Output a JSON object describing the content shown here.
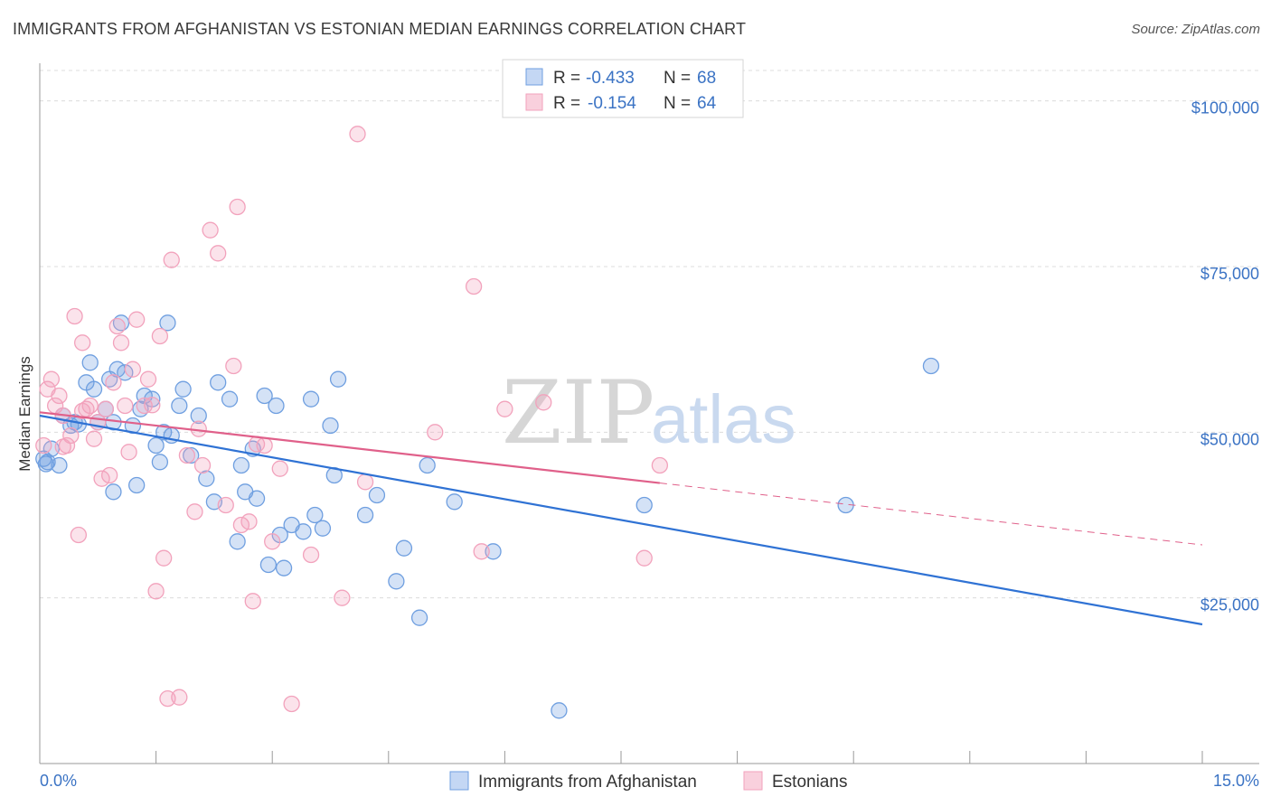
{
  "title": "IMMIGRANTS FROM AFGHANISTAN VS ESTONIAN MEDIAN EARNINGS CORRELATION CHART",
  "source": "Source: ZipAtlas.com",
  "watermark": {
    "zip": "ZIP",
    "atlas": "atlas"
  },
  "legend": {
    "rows": [
      {
        "r_label": "R =",
        "r_value": "-0.433",
        "n_label": "N =",
        "n_value": "68"
      },
      {
        "r_label": "R =",
        "r_value": "-0.154",
        "n_label": "N =",
        "n_value": "64"
      }
    ]
  },
  "bottom_legend": [
    "Immigrants from Afghanistan",
    "Estonians"
  ],
  "chart_data": {
    "type": "scatter",
    "title": "IMMIGRANTS FROM AFGHANISTAN VS ESTONIAN MEDIAN EARNINGS CORRELATION CHART",
    "xlabel": "",
    "ylabel": "Median Earnings",
    "xlim": [
      0,
      15
    ],
    "ylim": [
      0,
      105000
    ],
    "x_tick_labels": [
      "0.0%",
      "15.0%"
    ],
    "y_ticks": [
      25000,
      50000,
      75000,
      100000
    ],
    "y_tick_labels": [
      "$25,000",
      "$50,000",
      "$75,000",
      "$100,000"
    ],
    "grid": true,
    "series": [
      {
        "name": "Immigrants from Afghanistan",
        "color": "#6f9fe0",
        "line_color": "#2f72d4",
        "r": -0.433,
        "n": 68,
        "trend": {
          "x": [
            0,
            15
          ],
          "y": [
            52500,
            21000
          ],
          "solid_to": 15
        },
        "points": [
          [
            0.05,
            46000
          ],
          [
            0.1,
            45500
          ],
          [
            0.15,
            47500
          ],
          [
            0.25,
            45000
          ],
          [
            0.3,
            52500
          ],
          [
            0.4,
            51000
          ],
          [
            0.45,
            51500
          ],
          [
            0.6,
            57500
          ],
          [
            0.65,
            60500
          ],
          [
            0.7,
            56500
          ],
          [
            0.75,
            51500
          ],
          [
            0.85,
            53500
          ],
          [
            0.9,
            58000
          ],
          [
            0.95,
            51500
          ],
          [
            1.0,
            59500
          ],
          [
            1.1,
            59000
          ],
          [
            1.2,
            51000
          ],
          [
            1.25,
            42000
          ],
          [
            1.3,
            53500
          ],
          [
            1.35,
            55500
          ],
          [
            1.45,
            55000
          ],
          [
            1.5,
            48000
          ],
          [
            1.55,
            45500
          ],
          [
            1.6,
            50000
          ],
          [
            1.7,
            49500
          ],
          [
            1.8,
            54000
          ],
          [
            1.85,
            56500
          ],
          [
            1.95,
            46500
          ],
          [
            2.05,
            52500
          ],
          [
            2.15,
            43000
          ],
          [
            2.25,
            39500
          ],
          [
            2.3,
            57500
          ],
          [
            2.45,
            55000
          ],
          [
            2.55,
            33500
          ],
          [
            2.6,
            45000
          ],
          [
            2.65,
            41000
          ],
          [
            2.75,
            47500
          ],
          [
            2.8,
            40000
          ],
          [
            2.9,
            55500
          ],
          [
            2.95,
            30000
          ],
          [
            3.05,
            54000
          ],
          [
            3.1,
            34500
          ],
          [
            3.15,
            29500
          ],
          [
            3.25,
            36000
          ],
          [
            3.4,
            35000
          ],
          [
            3.5,
            55000
          ],
          [
            3.55,
            37500
          ],
          [
            3.65,
            35500
          ],
          [
            3.75,
            51000
          ],
          [
            3.8,
            43500
          ],
          [
            3.85,
            58000
          ],
          [
            4.2,
            37500
          ],
          [
            4.35,
            40500
          ],
          [
            4.6,
            27500
          ],
          [
            4.7,
            32500
          ],
          [
            4.9,
            22000
          ],
          [
            5.0,
            45000
          ],
          [
            5.35,
            39500
          ],
          [
            5.85,
            32000
          ],
          [
            6.7,
            8000
          ],
          [
            7.8,
            39000
          ],
          [
            10.4,
            39000
          ],
          [
            11.5,
            60000
          ],
          [
            0.08,
            45200
          ],
          [
            0.5,
            51200
          ],
          [
            0.95,
            41000
          ],
          [
            1.05,
            66500
          ],
          [
            1.65,
            66500
          ]
        ]
      },
      {
        "name": "Estonians",
        "color": "#f2a2bc",
        "line_color": "#e0608a",
        "r": -0.154,
        "n": 64,
        "trend": {
          "x": [
            0,
            15
          ],
          "y": [
            53000,
            33000
          ],
          "solid_to": 8.0
        },
        "points": [
          [
            0.05,
            48000
          ],
          [
            0.1,
            56500
          ],
          [
            0.15,
            58000
          ],
          [
            0.2,
            54000
          ],
          [
            0.25,
            55500
          ],
          [
            0.3,
            52500
          ],
          [
            0.35,
            48000
          ],
          [
            0.4,
            49500
          ],
          [
            0.45,
            67500
          ],
          [
            0.5,
            34500
          ],
          [
            0.55,
            63500
          ],
          [
            0.6,
            53500
          ],
          [
            0.65,
            54000
          ],
          [
            0.7,
            49000
          ],
          [
            0.75,
            51500
          ],
          [
            0.8,
            43000
          ],
          [
            0.85,
            53500
          ],
          [
            0.9,
            43500
          ],
          [
            0.95,
            57500
          ],
          [
            1.0,
            66000
          ],
          [
            1.05,
            63500
          ],
          [
            1.1,
            54000
          ],
          [
            1.15,
            47000
          ],
          [
            1.2,
            59500
          ],
          [
            1.25,
            67000
          ],
          [
            1.35,
            54000
          ],
          [
            1.4,
            58000
          ],
          [
            1.5,
            26000
          ],
          [
            1.55,
            64500
          ],
          [
            1.6,
            31000
          ],
          [
            1.7,
            76000
          ],
          [
            1.8,
            10000
          ],
          [
            1.9,
            46500
          ],
          [
            2.0,
            38000
          ],
          [
            2.05,
            50500
          ],
          [
            2.1,
            45000
          ],
          [
            2.2,
            80500
          ],
          [
            2.3,
            77000
          ],
          [
            2.4,
            39000
          ],
          [
            2.5,
            60000
          ],
          [
            2.55,
            84000
          ],
          [
            2.6,
            36000
          ],
          [
            2.7,
            36500
          ],
          [
            2.75,
            24500
          ],
          [
            2.9,
            48000
          ],
          [
            3.0,
            33500
          ],
          [
            3.1,
            44500
          ],
          [
            3.25,
            9000
          ],
          [
            3.5,
            31500
          ],
          [
            3.9,
            25000
          ],
          [
            4.1,
            95000
          ],
          [
            4.2,
            42500
          ],
          [
            5.1,
            50000
          ],
          [
            5.6,
            72000
          ],
          [
            5.7,
            32000
          ],
          [
            6.0,
            53500
          ],
          [
            6.5,
            54500
          ],
          [
            7.8,
            31000
          ],
          [
            8.0,
            45000
          ],
          [
            0.3,
            47800
          ],
          [
            0.55,
            53200
          ],
          [
            1.45,
            54100
          ],
          [
            2.8,
            48200
          ],
          [
            1.65,
            9800
          ]
        ]
      }
    ]
  }
}
